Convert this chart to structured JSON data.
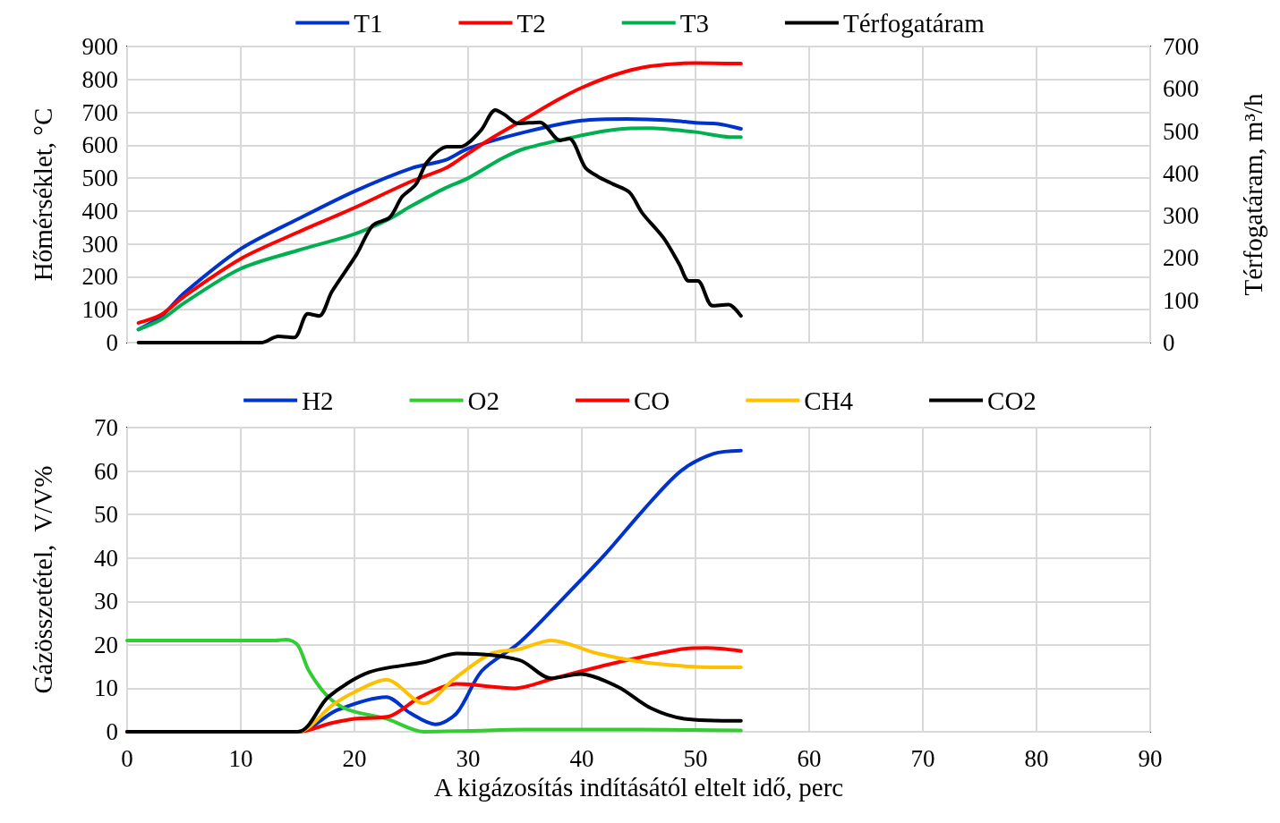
{
  "chart_data": [
    {
      "type": "line",
      "ylabel": "Hőmérséklet, °C",
      "y2label": "Térfogatáram, m³/h",
      "xlim": [
        0,
        90
      ],
      "xticks": [
        0,
        10,
        20,
        30,
        40,
        50,
        60,
        70,
        80,
        90
      ],
      "ylim": [
        0,
        900
      ],
      "yticks": [
        0,
        100,
        200,
        300,
        400,
        500,
        600,
        700,
        800,
        900
      ],
      "y2lim": [
        0,
        700
      ],
      "y2ticks": [
        0,
        100,
        200,
        300,
        400,
        500,
        600,
        700
      ],
      "tick_labels": "y",
      "grid": true,
      "legend": "top",
      "marker": "none",
      "series": [
        {
          "name": "T1",
          "color": "#0033cc",
          "x": [
            1,
            3,
            5,
            10,
            15,
            20,
            25,
            28,
            30,
            35,
            40,
            44,
            48,
            50,
            52,
            54
          ],
          "values": [
            40,
            80,
            150,
            285,
            375,
            460,
            530,
            555,
            590,
            640,
            675,
            680,
            675,
            668,
            665,
            650
          ]
        },
        {
          "name": "T2",
          "color": "#ff0000",
          "x": [
            1,
            3,
            5,
            10,
            15,
            18,
            20,
            25,
            28,
            30,
            32,
            35,
            38,
            40,
            43,
            46,
            50,
            54
          ],
          "values": [
            60,
            85,
            140,
            255,
            335,
            380,
            410,
            490,
            530,
            575,
            620,
            680,
            740,
            775,
            815,
            840,
            850,
            848
          ]
        },
        {
          "name": "T3",
          "color": "#00b050",
          "x": [
            1,
            3,
            5,
            10,
            15,
            20,
            23,
            25,
            28,
            30,
            33,
            35,
            40,
            43,
            46,
            50,
            53,
            54
          ],
          "values": [
            40,
            70,
            120,
            225,
            280,
            330,
            375,
            415,
            470,
            500,
            560,
            590,
            630,
            648,
            652,
            640,
            625,
            625
          ]
        },
        {
          "name": "Térfogatáram",
          "color": "#000000",
          "axis": "y2",
          "x": [
            1,
            11.8,
            13.3,
            14.7,
            15.9,
            16.9,
            18,
            20.2,
            21.6,
            23.1,
            24.2,
            25.4,
            26.4,
            28.2,
            29.3,
            31.1,
            32.4,
            33.2,
            34.4,
            36.3,
            38.1,
            38.9,
            40.3,
            41.4,
            42.8,
            44.2,
            45.3,
            47.2,
            48.6,
            49.4,
            50.2,
            51.5,
            52.9,
            54
          ],
          "values": [
            0,
            0,
            15,
            12,
            68,
            63,
            120,
            209,
            277,
            296,
            345,
            374,
            427,
            463,
            463,
            501,
            550,
            539,
            518,
            521,
            478,
            482,
            414,
            393,
            374,
            355,
            307,
            247,
            184,
            146,
            146,
            87,
            90,
            63
          ]
        }
      ]
    },
    {
      "type": "line",
      "xlabel": "A kigázosítás indításától eltelt idő, perc",
      "ylabel": "Gázösszetétel,  V/V%",
      "xlim": [
        0,
        90
      ],
      "xticks": [
        0,
        10,
        20,
        30,
        40,
        50,
        60,
        70,
        80,
        90
      ],
      "ylim": [
        0,
        70
      ],
      "yticks": [
        0,
        10,
        20,
        30,
        40,
        50,
        60,
        70
      ],
      "grid": true,
      "legend": "top",
      "marker": "none",
      "series": [
        {
          "name": "H2",
          "color": "#0033cc",
          "x": [
            0,
            15,
            18.5,
            22.8,
            24.9,
            27.1,
            29,
            31.2,
            34.5,
            38.1,
            42.1,
            45.4,
            48.7,
            51.6,
            54
          ],
          "values": [
            0,
            0,
            5,
            8,
            4.3,
            1.7,
            4.3,
            14,
            20.5,
            30,
            41,
            51,
            60,
            64,
            64.7
          ]
        },
        {
          "name": "O2",
          "color": "#33cc33",
          "x": [
            0,
            13,
            14,
            15,
            16,
            17.7,
            19.5,
            22.8,
            26.1,
            30,
            35,
            40,
            45,
            50,
            54
          ],
          "values": [
            21,
            21,
            21.2,
            20,
            14,
            8,
            5,
            3,
            0,
            0.2,
            0.5,
            0.5,
            0.5,
            0.4,
            0.3
          ]
        },
        {
          "name": "CO",
          "color": "#ff0000",
          "x": [
            0,
            15,
            18,
            20,
            23,
            25.8,
            29,
            34.1,
            37.8,
            43.2,
            48.7,
            51,
            54
          ],
          "values": [
            0,
            0,
            2,
            3,
            3.5,
            8,
            11,
            10,
            12.5,
            16,
            19,
            19.3,
            18.6
          ]
        },
        {
          "name": "CH4",
          "color": "#ffc000",
          "x": [
            0,
            15,
            18,
            19.9,
            22.8,
            26.1,
            28.7,
            32,
            34.5,
            37.3,
            41.4,
            45.4,
            49.8,
            54
          ],
          "values": [
            0,
            0,
            6,
            9,
            12,
            6.5,
            12,
            18,
            19,
            21,
            18,
            16,
            15,
            14.8
          ]
        },
        {
          "name": "CO2",
          "color": "#000000",
          "x": [
            0,
            15,
            17.7,
            21.3,
            26.1,
            29,
            34.5,
            37.3,
            39.9,
            43.2,
            46.1,
            49,
            54
          ],
          "values": [
            0,
            0,
            8,
            13.7,
            16,
            18,
            16.5,
            12.3,
            13.3,
            10.3,
            5.4,
            3,
            2.5
          ]
        }
      ]
    }
  ]
}
